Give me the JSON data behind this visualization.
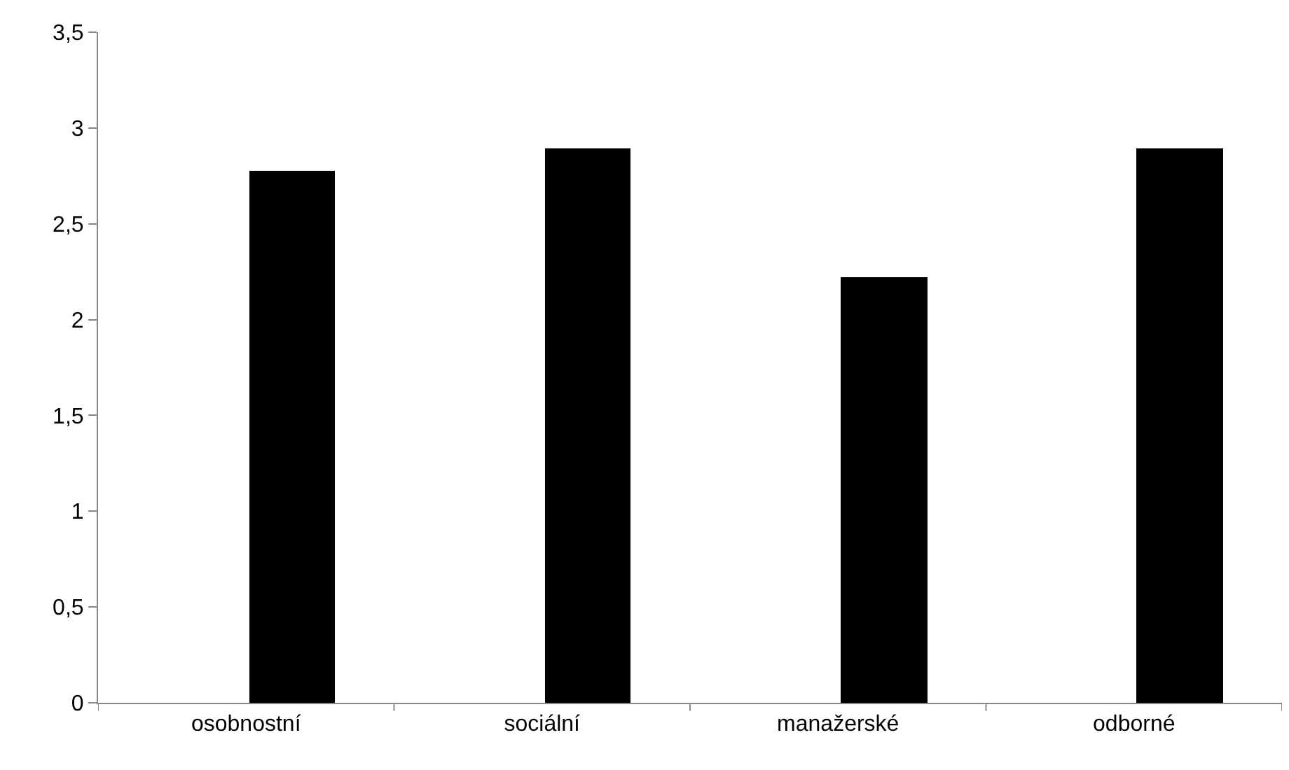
{
  "chart_data": {
    "type": "bar",
    "categories": [
      "osobnostní",
      "sociální",
      "manažerské",
      "odborné"
    ],
    "values": [
      2.78,
      2.89,
      2.22,
      2.89
    ],
    "color": "#000000",
    "ylim": [
      0,
      3.5
    ],
    "yticks": [
      {
        "value": 0,
        "label": "0"
      },
      {
        "value": 0.5,
        "label": "0,5"
      },
      {
        "value": 1,
        "label": "1"
      },
      {
        "value": 1.5,
        "label": "1,5"
      },
      {
        "value": 2,
        "label": "2"
      },
      {
        "value": 2.5,
        "label": "2,5"
      },
      {
        "value": 3,
        "label": "3"
      },
      {
        "value": 3.5,
        "label": "3,5"
      }
    ],
    "legend": false
  }
}
